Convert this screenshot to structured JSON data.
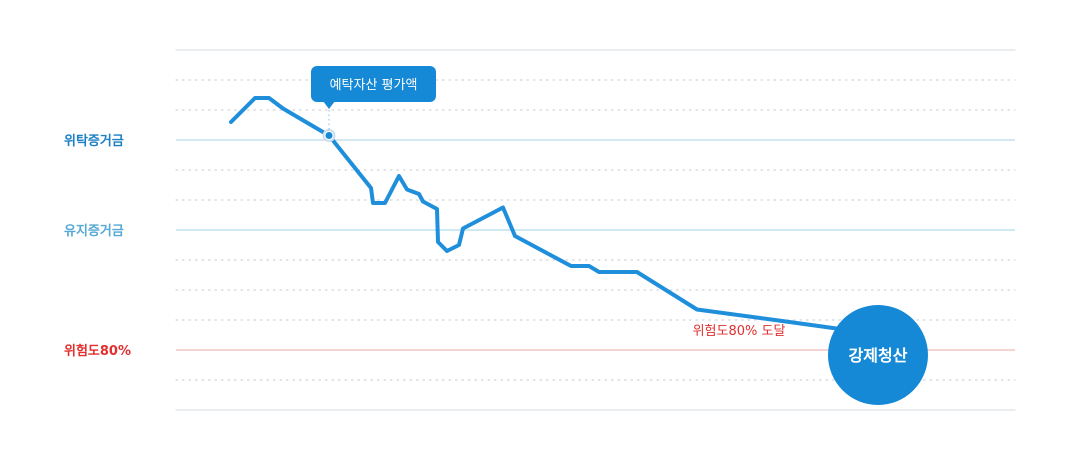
{
  "chart_data": {
    "type": "line",
    "title": "",
    "xlabel": "",
    "ylabel": "",
    "ylim": [
      0,
      12
    ],
    "grid": true,
    "levels": [
      {
        "key": "entrusted_margin",
        "label": "위탁증거금",
        "y": 9,
        "color": "#1b7fc4",
        "line_color": "#c9dff1"
      },
      {
        "key": "maintenance_margin",
        "label": "유지증거금",
        "y": 6,
        "color": "#56a8d6",
        "line_color": "#bfe2f1"
      },
      {
        "key": "risk_80",
        "label": "위험도80%",
        "y": 2,
        "color": "#e0302f",
        "line_color": "#f3c3c3"
      }
    ],
    "series": [
      {
        "name": "예탁자산 평가액",
        "color": "#1f8fdc",
        "x": [
          0,
          1.2,
          1.9,
          2.6,
          4.0,
          4.9,
          7.0,
          7.1,
          7.7,
          8.4,
          8.8,
          9.4,
          9.6,
          10.3,
          10.35,
          10.8,
          11.4,
          11.6,
          13.6,
          14.2,
          17.0,
          17.9,
          18.4,
          19.4,
          20.3,
          23.3,
          27.2,
          31.0,
          31.6
        ],
        "values": [
          9.6,
          10.4,
          10.4,
          10.05,
          9.5,
          9.15,
          7.4,
          6.9,
          6.9,
          7.8,
          7.35,
          7.2,
          6.95,
          6.7,
          5.6,
          5.3,
          5.5,
          6.05,
          6.75,
          5.8,
          4.8,
          4.8,
          4.6,
          4.6,
          4.6,
          3.35,
          3.0,
          2.65,
          2.55
        ]
      }
    ],
    "annotations": [
      {
        "key": "callout",
        "text": "예탁자산 평가액",
        "x": 4.9,
        "y": 9.15,
        "color": "#1689d6"
      },
      {
        "key": "reach_label",
        "text": "위험도80% 도달",
        "x": 25.4,
        "y": 2.5,
        "color": "#e0302f"
      },
      {
        "key": "liquidation",
        "text": "강제청산",
        "x": 31.6,
        "y": 2.0,
        "color": "#1689d6"
      }
    ]
  }
}
